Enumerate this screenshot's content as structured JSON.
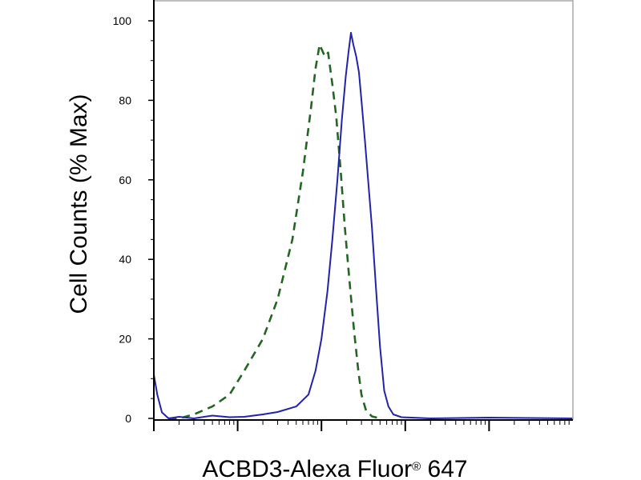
{
  "chart_data": {
    "type": "line",
    "title": "",
    "xlabel": "ACBD3-Alexa Fluor",
    "xlabel_mark": "®",
    "xlabel_suffix": " 647",
    "ylabel": "Cell Counts (% Max)",
    "x_scale": "log",
    "xlim": [
      1,
      100000
    ],
    "ylim": [
      0,
      100
    ],
    "yticks": [
      "0",
      "20",
      "40",
      "60",
      "80",
      "100"
    ],
    "legend": "none",
    "grid": false,
    "series": [
      {
        "color": "#2222aa",
        "style": "solid",
        "points": [
          [
            1,
            11
          ],
          [
            1.1,
            6
          ],
          [
            1.25,
            1.5
          ],
          [
            1.5,
            0
          ],
          [
            2,
            0.4
          ],
          [
            3,
            0
          ],
          [
            5,
            0.7
          ],
          [
            8,
            0.3
          ],
          [
            12,
            0.4
          ],
          [
            20,
            1
          ],
          [
            30,
            1.6
          ],
          [
            50,
            3
          ],
          [
            70,
            6
          ],
          [
            85,
            12
          ],
          [
            100,
            20
          ],
          [
            118,
            32
          ],
          [
            135,
            45
          ],
          [
            155,
            60
          ],
          [
            175,
            75
          ],
          [
            195,
            86
          ],
          [
            210,
            92
          ],
          [
            225,
            97
          ],
          [
            240,
            94
          ],
          [
            260,
            91
          ],
          [
            280,
            87
          ],
          [
            300,
            80
          ],
          [
            330,
            70
          ],
          [
            360,
            60
          ],
          [
            400,
            48
          ],
          [
            450,
            32
          ],
          [
            500,
            18
          ],
          [
            560,
            7
          ],
          [
            630,
            3
          ],
          [
            720,
            1
          ],
          [
            900,
            0.3
          ],
          [
            2000,
            0
          ],
          [
            10000,
            0.2
          ],
          [
            100000,
            0
          ]
        ]
      },
      {
        "color": "#226622",
        "style": "dashed",
        "points": [
          [
            1.5,
            0
          ],
          [
            2,
            0
          ],
          [
            3,
            1
          ],
          [
            5,
            3
          ],
          [
            8,
            6
          ],
          [
            12,
            12
          ],
          [
            20,
            20
          ],
          [
            30,
            30
          ],
          [
            45,
            45
          ],
          [
            60,
            62
          ],
          [
            75,
            78
          ],
          [
            85,
            88
          ],
          [
            95,
            94
          ],
          [
            110,
            91
          ],
          [
            120,
            92
          ],
          [
            135,
            84
          ],
          [
            150,
            76
          ],
          [
            170,
            62
          ],
          [
            190,
            48
          ],
          [
            215,
            35
          ],
          [
            245,
            22
          ],
          [
            275,
            12
          ],
          [
            300,
            6
          ],
          [
            340,
            2
          ],
          [
            400,
            0.5
          ],
          [
            500,
            0
          ]
        ]
      }
    ]
  }
}
